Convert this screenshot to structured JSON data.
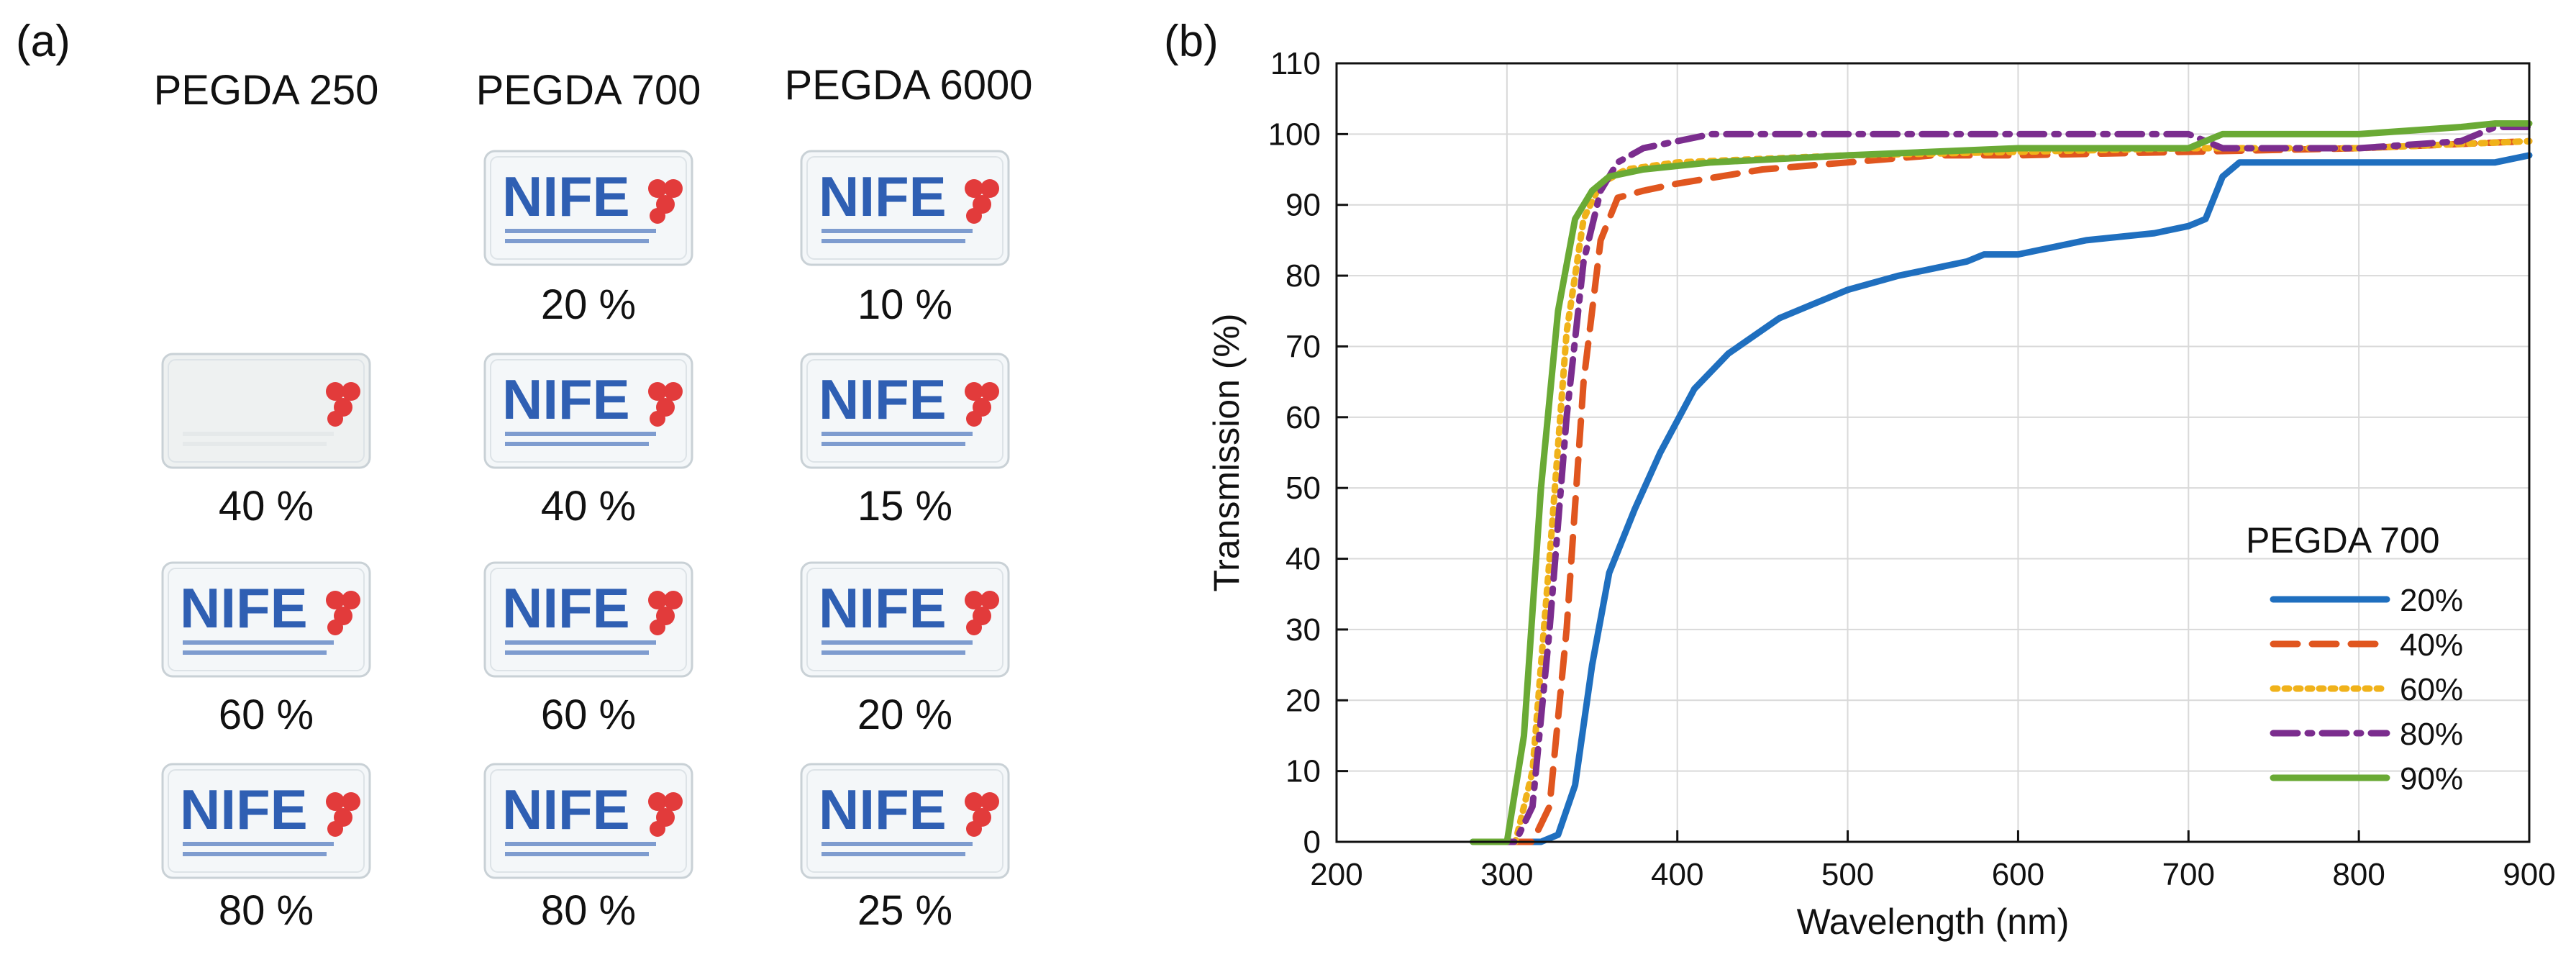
{
  "panel_a": {
    "label": "(a)",
    "columns": [
      "PEGDA 250",
      "PEGDA 700",
      "PEGDA 6000"
    ],
    "samples": [
      [
        null,
        "20 %",
        "10 %"
      ],
      [
        "40 %",
        "40 %",
        "15 %"
      ],
      [
        "60 %",
        "60 %",
        "20 %"
      ],
      [
        "80 %",
        "80 %",
        "25 %"
      ]
    ],
    "sample_logo_text": "NIFE",
    "colors": {
      "logo_blue": "#2f5fb3",
      "logo_red": "#e23b3b"
    }
  },
  "panel_b": {
    "label": "(b)"
  },
  "chart_data": {
    "type": "line",
    "title": "",
    "xlabel": "Wavelength (nm)",
    "ylabel": "Transmission (%)",
    "xlim": [
      200,
      900
    ],
    "ylim": [
      0,
      110
    ],
    "xticks": [
      200,
      300,
      400,
      500,
      600,
      700,
      800,
      900
    ],
    "yticks": [
      0,
      10,
      20,
      30,
      40,
      50,
      60,
      70,
      80,
      90,
      100,
      110
    ],
    "grid": true,
    "legend_title": "PEGDA 700",
    "legend_position": "bottom-right",
    "series": [
      {
        "name": "20%",
        "color": "#1f6fbf",
        "dash": "solid",
        "x": [
          280,
          320,
          330,
          340,
          350,
          360,
          375,
          390,
          410,
          430,
          460,
          480,
          500,
          530,
          550,
          570,
          580,
          600,
          640,
          680,
          700,
          710,
          720,
          730,
          800,
          860,
          880,
          900
        ],
        "y": [
          0,
          0,
          1,
          8,
          25,
          38,
          47,
          55,
          64,
          69,
          74,
          76,
          78,
          80,
          81,
          82,
          83,
          83,
          85,
          86,
          87,
          88,
          94,
          96,
          96,
          96,
          96,
          97
        ]
      },
      {
        "name": "40%",
        "color": "#e0561f",
        "dash": "dash",
        "x": [
          300,
          315,
          325,
          335,
          345,
          355,
          365,
          380,
          400,
          450,
          500,
          550,
          600,
          700,
          800,
          900
        ],
        "y": [
          0,
          0,
          5,
          30,
          65,
          85,
          91,
          92,
          93,
          95,
          96,
          97,
          97,
          97.5,
          98,
          99
        ]
      },
      {
        "name": "60%",
        "color": "#f0b21a",
        "dash": "dot",
        "x": [
          290,
          305,
          315,
          325,
          335,
          345,
          355,
          370,
          400,
          450,
          500,
          600,
          700,
          800,
          900
        ],
        "y": [
          0,
          0,
          10,
          40,
          72,
          88,
          93,
          95,
          96,
          96.5,
          97,
          97.5,
          98,
          98,
          99
        ]
      },
      {
        "name": "80%",
        "color": "#7b2d8e",
        "dash": "dashdot",
        "x": [
          290,
          305,
          315,
          325,
          335,
          345,
          355,
          365,
          380,
          420,
          500,
          600,
          700,
          720,
          800,
          860,
          880,
          900
        ],
        "y": [
          0,
          0,
          5,
          30,
          60,
          82,
          92,
          96,
          98,
          100,
          100,
          100,
          100,
          98,
          98,
          99,
          101,
          101
        ]
      },
      {
        "name": "90%",
        "color": "#6aaa35",
        "dash": "solid",
        "x": [
          280,
          300,
          310,
          320,
          330,
          340,
          350,
          360,
          380,
          420,
          500,
          600,
          700,
          710,
          720,
          800,
          860,
          880,
          900
        ],
        "y": [
          0,
          0,
          15,
          50,
          75,
          88,
          92,
          94,
          95,
          96,
          97,
          98,
          98,
          99,
          100,
          100,
          101,
          101.5,
          101.5
        ]
      }
    ]
  }
}
